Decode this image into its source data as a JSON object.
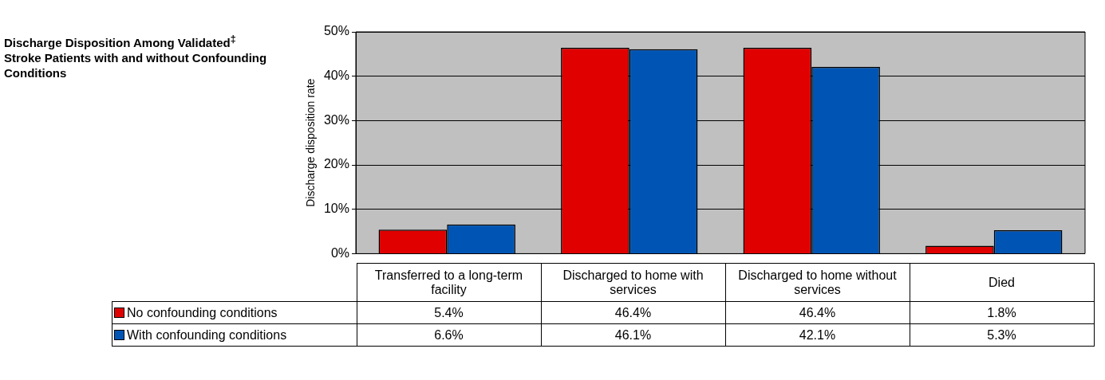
{
  "chart_data": {
    "type": "bar",
    "title": "Discharge Disposition Among Validated$^{‡}$ Stroke Patients with and without Confounding Conditions",
    "ylabel": "Discharge disposition rate",
    "categories": [
      "Transferred to a long-term facility",
      "Discharged to home with services",
      "Discharged to home without services",
      "Died"
    ],
    "series": [
      {
        "name": "No confounding conditions",
        "color": "#e00000",
        "values": [
          5.4,
          46.4,
          46.4,
          1.8
        ],
        "value_labels": [
          "5.4%",
          "46.4%",
          "46.4%",
          "1.8%"
        ]
      },
      {
        "name": "With confounding conditions",
        "color": "#0055b4",
        "values": [
          6.6,
          46.1,
          42.1,
          5.3
        ],
        "value_labels": [
          "6.6%",
          "46.1%",
          "42.1%",
          "5.3%"
        ]
      }
    ],
    "ylim": [
      0,
      50
    ],
    "yticks": [
      {
        "value": 0,
        "label": "0%"
      },
      {
        "value": 10,
        "label": "10%"
      },
      {
        "value": 20,
        "label": "20%"
      },
      {
        "value": 30,
        "label": "30%"
      },
      {
        "value": 40,
        "label": "40%"
      },
      {
        "value": 50,
        "label": "50%"
      }
    ],
    "grid": "y",
    "legend": "bottom left"
  }
}
